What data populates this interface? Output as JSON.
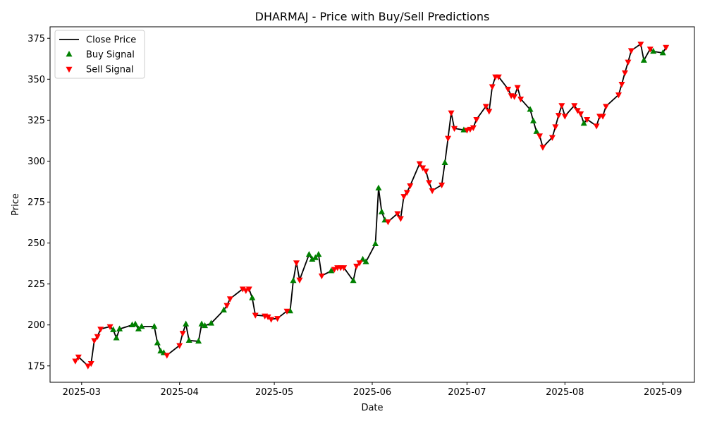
{
  "chart_data": {
    "type": "line",
    "title": "DHARMAJ - Price with Buy/Sell Predictions",
    "xlabel": "Date",
    "ylabel": "Price",
    "x_tick_labels": [
      "2025-03",
      "2025-04",
      "2025-05",
      "2025-06",
      "2025-07",
      "2025-08",
      "2025-09"
    ],
    "x_ticks": [
      "2025-03-01",
      "2025-04-01",
      "2025-05-01",
      "2025-06-01",
      "2025-07-01",
      "2025-08-01",
      "2025-09-01"
    ],
    "xlim": [
      "2025-02-19",
      "2025-09-11"
    ],
    "y_ticks": [
      175,
      200,
      225,
      250,
      275,
      300,
      325,
      350,
      375
    ],
    "ylim": [
      165,
      382
    ],
    "grid": false,
    "legend_position": "upper left",
    "legend": [
      {
        "label": "Close Price",
        "kind": "line",
        "color": "#000000"
      },
      {
        "label": "Buy Signal",
        "kind": "triangle-up",
        "color": "#008000"
      },
      {
        "label": "Sell Signal",
        "kind": "triangle-down",
        "color": "#ff0000"
      }
    ],
    "series": [
      {
        "name": "Close Price",
        "color": "#000000",
        "points": [
          [
            "2025-02-27",
            178
          ],
          [
            "2025-02-28",
            180.5
          ],
          [
            "2025-03-03",
            175
          ],
          [
            "2025-03-04",
            176.5
          ],
          [
            "2025-03-05",
            190.5
          ],
          [
            "2025-03-06",
            193
          ],
          [
            "2025-03-07",
            197.5
          ],
          [
            "2025-03-10",
            199
          ],
          [
            "2025-03-11",
            197
          ],
          [
            "2025-03-12",
            192
          ],
          [
            "2025-03-13",
            197.5
          ],
          [
            "2025-03-17",
            200
          ],
          [
            "2025-03-18",
            200.5
          ],
          [
            "2025-03-19",
            197.5
          ],
          [
            "2025-03-20",
            199
          ],
          [
            "2025-03-24",
            199
          ],
          [
            "2025-03-25",
            189
          ],
          [
            "2025-03-26",
            184
          ],
          [
            "2025-03-27",
            183
          ],
          [
            "2025-03-28",
            181.5
          ],
          [
            "2025-04-01",
            187.5
          ],
          [
            "2025-04-02",
            195
          ],
          [
            "2025-04-03",
            200.5
          ],
          [
            "2025-04-04",
            190.5
          ],
          [
            "2025-04-07",
            190
          ],
          [
            "2025-04-08",
            200.5
          ],
          [
            "2025-04-09",
            199.5
          ],
          [
            "2025-04-11",
            201
          ],
          [
            "2025-04-15",
            209
          ],
          [
            "2025-04-16",
            212
          ],
          [
            "2025-04-17",
            216
          ],
          [
            "2025-04-21",
            222
          ],
          [
            "2025-04-22",
            221
          ],
          [
            "2025-04-23",
            222
          ],
          [
            "2025-04-24",
            216.5
          ],
          [
            "2025-04-25",
            206
          ],
          [
            "2025-04-28",
            205.5
          ],
          [
            "2025-04-29",
            205
          ],
          [
            "2025-04-30",
            203.5
          ],
          [
            "2025-05-02",
            204
          ],
          [
            "2025-05-05",
            208.5
          ],
          [
            "2025-05-06",
            208.5
          ],
          [
            "2025-05-07",
            227
          ],
          [
            "2025-05-08",
            238
          ],
          [
            "2025-05-09",
            227.5
          ],
          [
            "2025-05-12",
            243
          ],
          [
            "2025-05-13",
            240
          ],
          [
            "2025-05-14",
            241
          ],
          [
            "2025-05-15",
            243
          ],
          [
            "2025-05-16",
            230
          ],
          [
            "2025-05-19",
            233
          ],
          [
            "2025-05-20",
            234
          ],
          [
            "2025-05-21",
            235
          ],
          [
            "2025-05-22",
            235
          ],
          [
            "2025-05-23",
            235
          ],
          [
            "2025-05-26",
            227
          ],
          [
            "2025-05-27",
            236
          ],
          [
            "2025-05-28",
            238
          ],
          [
            "2025-05-29",
            240
          ],
          [
            "2025-05-30",
            238.5
          ],
          [
            "2025-06-02",
            249.5
          ],
          [
            "2025-06-03",
            283.5
          ],
          [
            "2025-06-04",
            269
          ],
          [
            "2025-06-05",
            264
          ],
          [
            "2025-06-06",
            263
          ],
          [
            "2025-06-09",
            268
          ],
          [
            "2025-06-10",
            265
          ],
          [
            "2025-06-11",
            278.5
          ],
          [
            "2025-06-12",
            281
          ],
          [
            "2025-06-13",
            285
          ],
          [
            "2025-06-16",
            298.5
          ],
          [
            "2025-06-17",
            296
          ],
          [
            "2025-06-18",
            294
          ],
          [
            "2025-06-19",
            287
          ],
          [
            "2025-06-20",
            282
          ],
          [
            "2025-06-23",
            285.5
          ],
          [
            "2025-06-24",
            299
          ],
          [
            "2025-06-25",
            314
          ],
          [
            "2025-06-26",
            329.5
          ],
          [
            "2025-06-27",
            320
          ],
          [
            "2025-06-30",
            319
          ],
          [
            "2025-07-01",
            319
          ],
          [
            "2025-07-02",
            319.5
          ],
          [
            "2025-07-03",
            320.5
          ],
          [
            "2025-07-04",
            325.5
          ],
          [
            "2025-07-07",
            333.5
          ],
          [
            "2025-07-08",
            330.5
          ],
          [
            "2025-07-09",
            345.5
          ],
          [
            "2025-07-10",
            351.5
          ],
          [
            "2025-07-11",
            351.5
          ],
          [
            "2025-07-14",
            344
          ],
          [
            "2025-07-15",
            340
          ],
          [
            "2025-07-16",
            339.5
          ],
          [
            "2025-07-17",
            345
          ],
          [
            "2025-07-18",
            338
          ],
          [
            "2025-07-21",
            331.5
          ],
          [
            "2025-07-22",
            324.5
          ],
          [
            "2025-07-23",
            318
          ],
          [
            "2025-07-24",
            315.5
          ],
          [
            "2025-07-25",
            308.5
          ],
          [
            "2025-07-28",
            314.5
          ],
          [
            "2025-07-29",
            321
          ],
          [
            "2025-07-30",
            328
          ],
          [
            "2025-07-31",
            334
          ],
          [
            "2025-08-01",
            327.5
          ],
          [
            "2025-08-04",
            334
          ],
          [
            "2025-08-05",
            331
          ],
          [
            "2025-08-06",
            329
          ],
          [
            "2025-08-07",
            323
          ],
          [
            "2025-08-08",
            325.5
          ],
          [
            "2025-08-11",
            321.5
          ],
          [
            "2025-08-12",
            327.5
          ],
          [
            "2025-08-13",
            327.5
          ],
          [
            "2025-08-14",
            333.5
          ],
          [
            "2025-08-18",
            340.5
          ],
          [
            "2025-08-19",
            347
          ],
          [
            "2025-08-20",
            354
          ],
          [
            "2025-08-21",
            360.5
          ],
          [
            "2025-08-22",
            367.5
          ],
          [
            "2025-08-25",
            371.5
          ],
          [
            "2025-08-26",
            361.5
          ],
          [
            "2025-08-28",
            368.5
          ],
          [
            "2025-08-29",
            367
          ],
          [
            "2025-09-01",
            366
          ],
          [
            "2025-09-02",
            369.5
          ]
        ]
      },
      {
        "name": "Buy Signal",
        "color": "#008000",
        "marker": "triangle-up",
        "points": [
          [
            "2025-03-11",
            197
          ],
          [
            "2025-03-12",
            192
          ],
          [
            "2025-03-13",
            197.5
          ],
          [
            "2025-03-17",
            200
          ],
          [
            "2025-03-18",
            200.5
          ],
          [
            "2025-03-19",
            197.5
          ],
          [
            "2025-03-20",
            199
          ],
          [
            "2025-03-24",
            199
          ],
          [
            "2025-03-25",
            189
          ],
          [
            "2025-03-26",
            184
          ],
          [
            "2025-03-27",
            183
          ],
          [
            "2025-04-03",
            200.5
          ],
          [
            "2025-04-04",
            190.5
          ],
          [
            "2025-04-07",
            190
          ],
          [
            "2025-04-08",
            200.5
          ],
          [
            "2025-04-09",
            199.5
          ],
          [
            "2025-04-11",
            201
          ],
          [
            "2025-04-15",
            209
          ],
          [
            "2025-04-24",
            216.5
          ],
          [
            "2025-05-06",
            208.5
          ],
          [
            "2025-05-07",
            227
          ],
          [
            "2025-05-12",
            243
          ],
          [
            "2025-05-13",
            240
          ],
          [
            "2025-05-14",
            241
          ],
          [
            "2025-05-15",
            243
          ],
          [
            "2025-05-19",
            233
          ],
          [
            "2025-05-26",
            227
          ],
          [
            "2025-05-29",
            240
          ],
          [
            "2025-05-30",
            238.5
          ],
          [
            "2025-06-02",
            249.5
          ],
          [
            "2025-06-03",
            283.5
          ],
          [
            "2025-06-04",
            269
          ],
          [
            "2025-06-05",
            264
          ],
          [
            "2025-06-24",
            299
          ],
          [
            "2025-06-30",
            319
          ],
          [
            "2025-07-21",
            331.5
          ],
          [
            "2025-07-22",
            324.5
          ],
          [
            "2025-07-23",
            318
          ],
          [
            "2025-08-07",
            323
          ],
          [
            "2025-08-26",
            361.5
          ],
          [
            "2025-08-29",
            367
          ],
          [
            "2025-09-01",
            366
          ]
        ]
      },
      {
        "name": "Sell Signal",
        "color": "#ff0000",
        "marker": "triangle-down",
        "points": [
          [
            "2025-02-27",
            178
          ],
          [
            "2025-02-28",
            180.5
          ],
          [
            "2025-03-03",
            175
          ],
          [
            "2025-03-04",
            176.5
          ],
          [
            "2025-03-05",
            190.5
          ],
          [
            "2025-03-06",
            193
          ],
          [
            "2025-03-07",
            197.5
          ],
          [
            "2025-03-10",
            199
          ],
          [
            "2025-03-28",
            181.5
          ],
          [
            "2025-04-01",
            187.5
          ],
          [
            "2025-04-02",
            195
          ],
          [
            "2025-04-16",
            212
          ],
          [
            "2025-04-17",
            216
          ],
          [
            "2025-04-21",
            222
          ],
          [
            "2025-04-22",
            221
          ],
          [
            "2025-04-23",
            222
          ],
          [
            "2025-04-25",
            206
          ],
          [
            "2025-04-28",
            205.5
          ],
          [
            "2025-04-29",
            205
          ],
          [
            "2025-04-30",
            203.5
          ],
          [
            "2025-05-02",
            204
          ],
          [
            "2025-05-05",
            208.5
          ],
          [
            "2025-05-08",
            238
          ],
          [
            "2025-05-09",
            227.5
          ],
          [
            "2025-05-16",
            230
          ],
          [
            "2025-05-20",
            234
          ],
          [
            "2025-05-21",
            235
          ],
          [
            "2025-05-22",
            235
          ],
          [
            "2025-05-23",
            235
          ],
          [
            "2025-05-27",
            236
          ],
          [
            "2025-05-28",
            238
          ],
          [
            "2025-06-06",
            263
          ],
          [
            "2025-06-09",
            268
          ],
          [
            "2025-06-10",
            265
          ],
          [
            "2025-06-11",
            278.5
          ],
          [
            "2025-06-12",
            281
          ],
          [
            "2025-06-13",
            285
          ],
          [
            "2025-06-16",
            298.5
          ],
          [
            "2025-06-17",
            296
          ],
          [
            "2025-06-18",
            294
          ],
          [
            "2025-06-19",
            287
          ],
          [
            "2025-06-20",
            282
          ],
          [
            "2025-06-23",
            285.5
          ],
          [
            "2025-06-25",
            314
          ],
          [
            "2025-06-26",
            329.5
          ],
          [
            "2025-06-27",
            320
          ],
          [
            "2025-07-01",
            319
          ],
          [
            "2025-07-02",
            319.5
          ],
          [
            "2025-07-03",
            320.5
          ],
          [
            "2025-07-04",
            325.5
          ],
          [
            "2025-07-07",
            333.5
          ],
          [
            "2025-07-08",
            330.5
          ],
          [
            "2025-07-09",
            345.5
          ],
          [
            "2025-07-10",
            351.5
          ],
          [
            "2025-07-11",
            351.5
          ],
          [
            "2025-07-14",
            344
          ],
          [
            "2025-07-15",
            340
          ],
          [
            "2025-07-16",
            339.5
          ],
          [
            "2025-07-17",
            345
          ],
          [
            "2025-07-18",
            338
          ],
          [
            "2025-07-24",
            315.5
          ],
          [
            "2025-07-25",
            308.5
          ],
          [
            "2025-07-28",
            314.5
          ],
          [
            "2025-07-29",
            321
          ],
          [
            "2025-07-30",
            328
          ],
          [
            "2025-07-31",
            334
          ],
          [
            "2025-08-01",
            327.5
          ],
          [
            "2025-08-04",
            334
          ],
          [
            "2025-08-05",
            331
          ],
          [
            "2025-08-06",
            329
          ],
          [
            "2025-08-08",
            325.5
          ],
          [
            "2025-08-11",
            321.5
          ],
          [
            "2025-08-12",
            327.5
          ],
          [
            "2025-08-13",
            327.5
          ],
          [
            "2025-08-14",
            333.5
          ],
          [
            "2025-08-18",
            340.5
          ],
          [
            "2025-08-19",
            347
          ],
          [
            "2025-08-20",
            354
          ],
          [
            "2025-08-21",
            360.5
          ],
          [
            "2025-08-22",
            367.5
          ],
          [
            "2025-08-25",
            371.5
          ],
          [
            "2025-08-28",
            368.5
          ],
          [
            "2025-09-02",
            369.5
          ]
        ]
      }
    ]
  }
}
